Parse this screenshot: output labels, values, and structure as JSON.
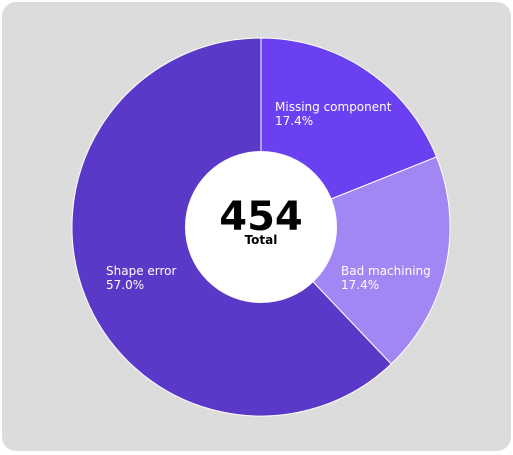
{
  "chart_data": {
    "type": "pie",
    "variant": "donut",
    "categories": [
      "Missing component",
      "Bad machining",
      "Shape error"
    ],
    "values": [
      17.4,
      17.4,
      57.0
    ],
    "value_labels": [
      "17.4%",
      "17.4%",
      "57.0%"
    ],
    "colors": [
      "#6a40f0",
      "#a286f4",
      "#5a38c8"
    ],
    "center": {
      "value": "454",
      "caption": "Total"
    },
    "legend": "none",
    "grid": false
  }
}
